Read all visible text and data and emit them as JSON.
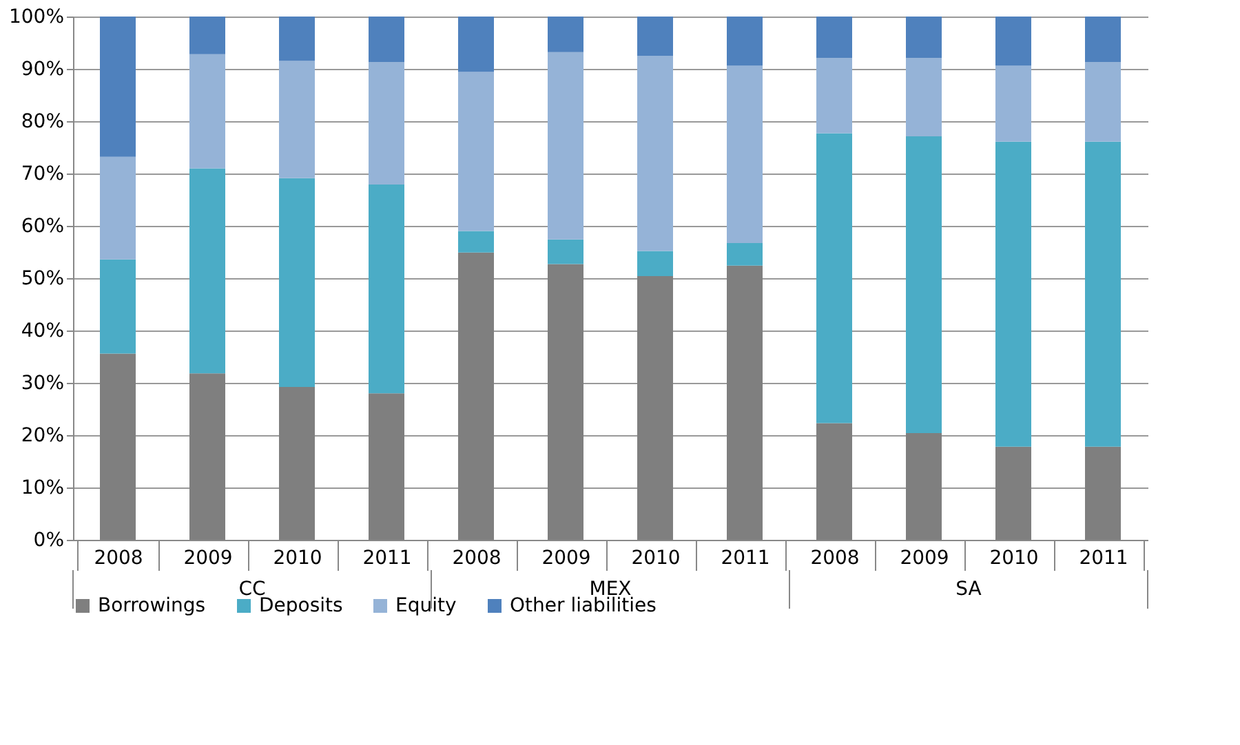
{
  "chart_data": {
    "type": "bar",
    "stacked": true,
    "categories": [
      "2008",
      "2009",
      "2010",
      "2011",
      "2008",
      "2009",
      "2010",
      "2011",
      "2008",
      "2009",
      "2010",
      "2011"
    ],
    "annotations": [
      "CC",
      "MEX",
      "SA"
    ],
    "series": [
      {
        "name": "Borrowings",
        "color": "#7f7f7f",
        "values": [
          35.6,
          31.8,
          29.2,
          28.0,
          54.9,
          52.7,
          50.4,
          52.4,
          22.3,
          20.4,
          17.8,
          17.8
        ]
      },
      {
        "name": "Deposits",
        "color": "#4bacc6",
        "values": [
          18.0,
          39.2,
          39.9,
          39.9,
          4.1,
          4.7,
          4.8,
          4.3,
          55.4,
          56.7,
          58.3,
          58.3
        ]
      },
      {
        "name": "Equity",
        "color": "#95b3d7",
        "values": [
          19.6,
          21.8,
          22.4,
          23.4,
          30.4,
          35.8,
          37.3,
          33.9,
          14.4,
          15.0,
          14.5,
          15.2
        ]
      },
      {
        "name": "Other liabilities",
        "color": "#4f81bd",
        "values": [
          26.8,
          7.2,
          8.5,
          8.7,
          10.6,
          6.8,
          7.5,
          9.4,
          7.9,
          7.9,
          9.4,
          8.7
        ]
      }
    ],
    "ylim": [
      0,
      100
    ],
    "yticks": [
      {
        "value": 0,
        "label": "0%"
      },
      {
        "value": 10,
        "label": "10%"
      },
      {
        "value": 20,
        "label": "20%"
      },
      {
        "value": 30,
        "label": "30%"
      },
      {
        "value": 40,
        "label": "40%"
      },
      {
        "value": 50,
        "label": "50%"
      },
      {
        "value": 60,
        "label": "60%"
      },
      {
        "value": 70,
        "label": "70%"
      },
      {
        "value": 80,
        "label": "80%"
      },
      {
        "value": 90,
        "label": "90%"
      },
      {
        "value": 100,
        "label": "100%"
      }
    ],
    "grid": "y",
    "legend": "bottom"
  }
}
